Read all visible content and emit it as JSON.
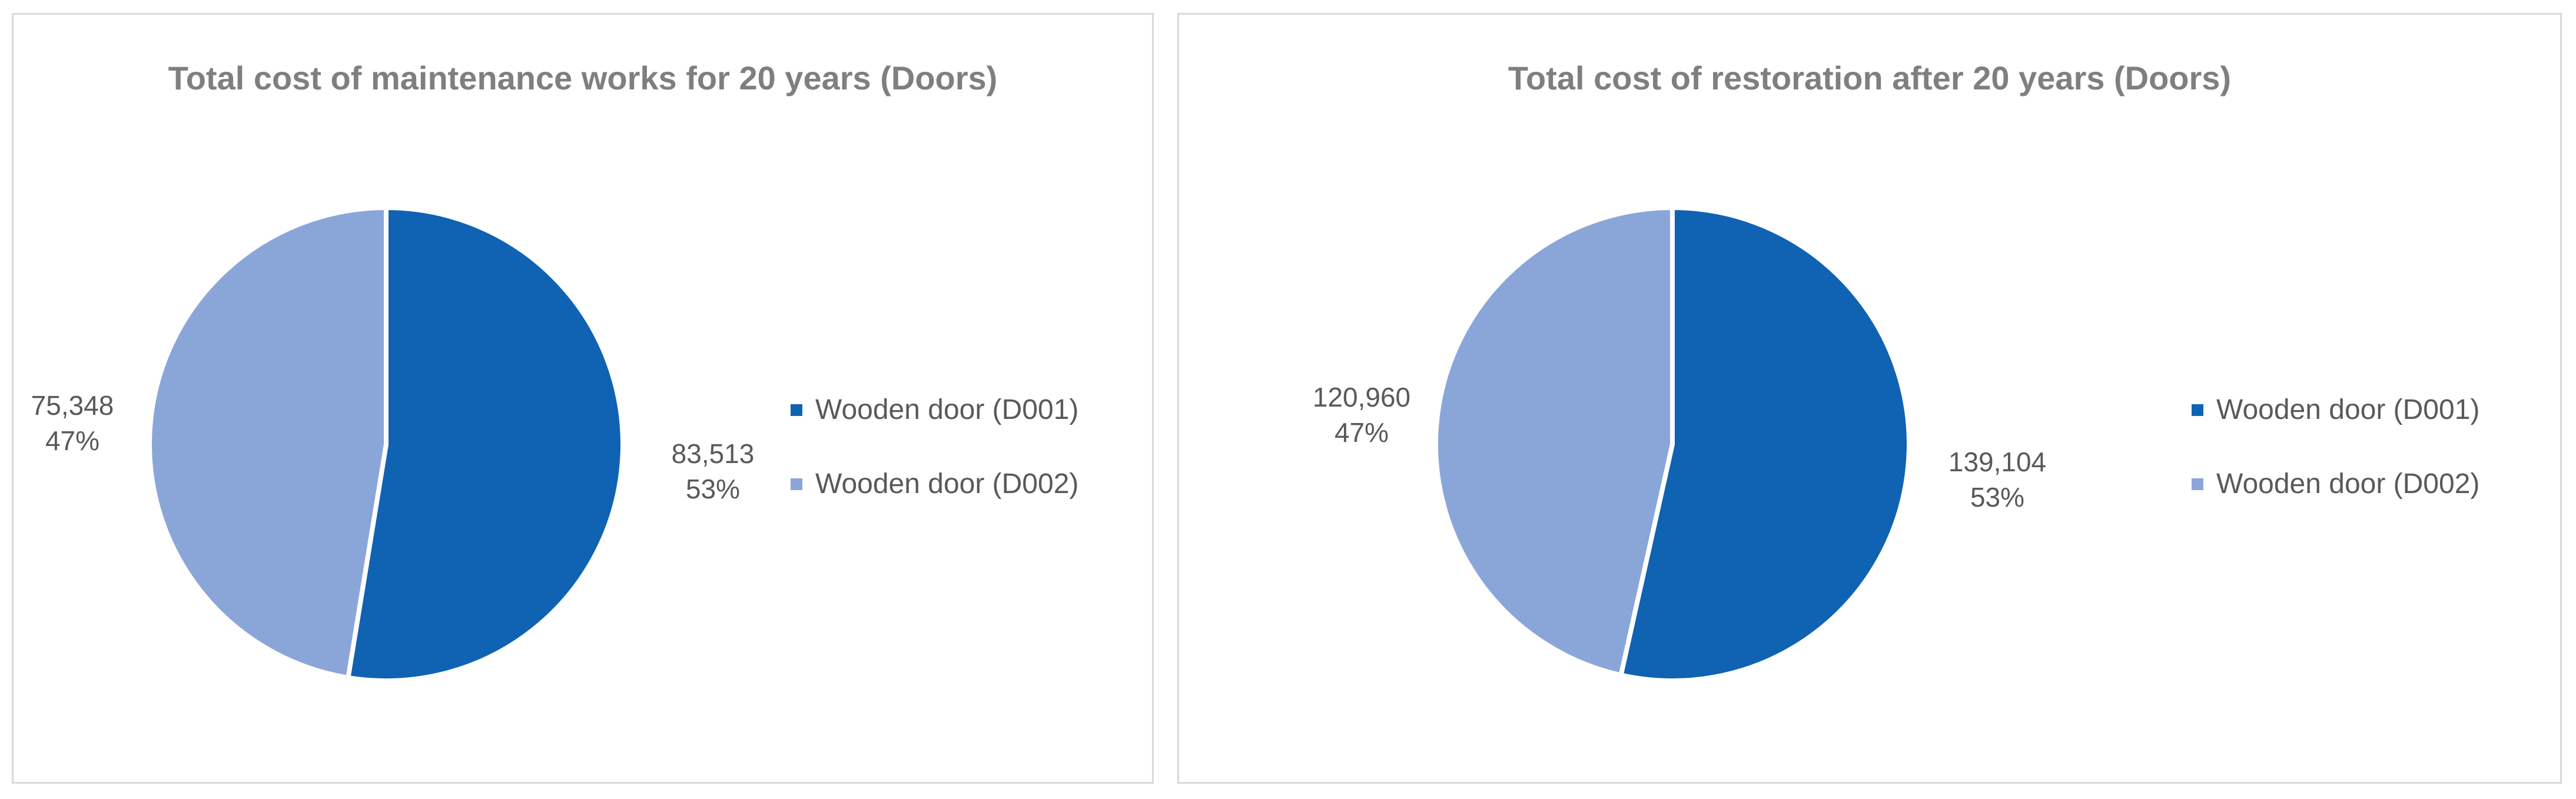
{
  "chart_data": [
    {
      "type": "pie",
      "title": "Total cost of maintenance works for 20 years (Doors)",
      "categories": [
        "Wooden door (D001)",
        "Wooden door (D002)"
      ],
      "values": [
        83513,
        75348
      ],
      "value_labels": [
        "83,513",
        "75,348"
      ],
      "percent_labels": [
        "53%",
        "47%"
      ],
      "colors": [
        "#1062b2",
        "#8aa6d9"
      ],
      "legend": "right"
    },
    {
      "type": "pie",
      "title": "Total cost of restoration after 20 years (Doors)",
      "categories": [
        "Wooden door (D001)",
        "Wooden door (D002)"
      ],
      "values": [
        139104,
        120960
      ],
      "value_labels": [
        "139,104",
        "120,960"
      ],
      "percent_labels": [
        "53%",
        "47%"
      ],
      "colors": [
        "#1062b2",
        "#8aa6d9"
      ],
      "legend": "right"
    }
  ]
}
